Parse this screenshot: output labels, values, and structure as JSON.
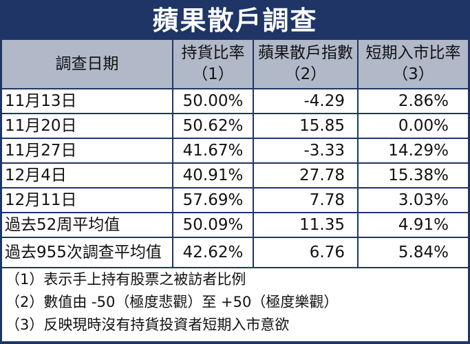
{
  "title": "蘋果散戶調查",
  "columns": [
    {
      "line1": "調查日期",
      "line2": ""
    },
    {
      "line1": "持貨比率",
      "line2": "（1）"
    },
    {
      "line1": "蘋果散戶指數",
      "line2": "（2）"
    },
    {
      "line1": "短期入市比率",
      "line2": "（3）"
    }
  ],
  "rows": [
    [
      "11月13日",
      "50.00%",
      "-4.29",
      "2.86%"
    ],
    [
      "11月20日",
      "50.62%",
      "15.85",
      "0.00%"
    ],
    [
      "11月27日",
      "41.67%",
      "-3.33",
      "14.29%"
    ],
    [
      "12月4日",
      "40.91%",
      "27.78",
      "15.38%"
    ],
    [
      "12月11日",
      "57.69%",
      "7.78",
      "3.03%"
    ],
    [
      "過去52周平均值",
      "50.09%",
      "11.35",
      "4.91%"
    ],
    [
      "過去955次調查平均值",
      "42.62%",
      "6.76",
      "5.84%"
    ]
  ],
  "notes": [
    "（1）表示手上持有股票之被訪者比例",
    "（2）數值由 -50（極度悲觀）至 +50（極度樂觀）",
    "（3）反映現時沒有持貨投資者短期入市意欲"
  ],
  "colors": {
    "navy": "#1e3566",
    "header_bg": "#b1b9c9"
  }
}
